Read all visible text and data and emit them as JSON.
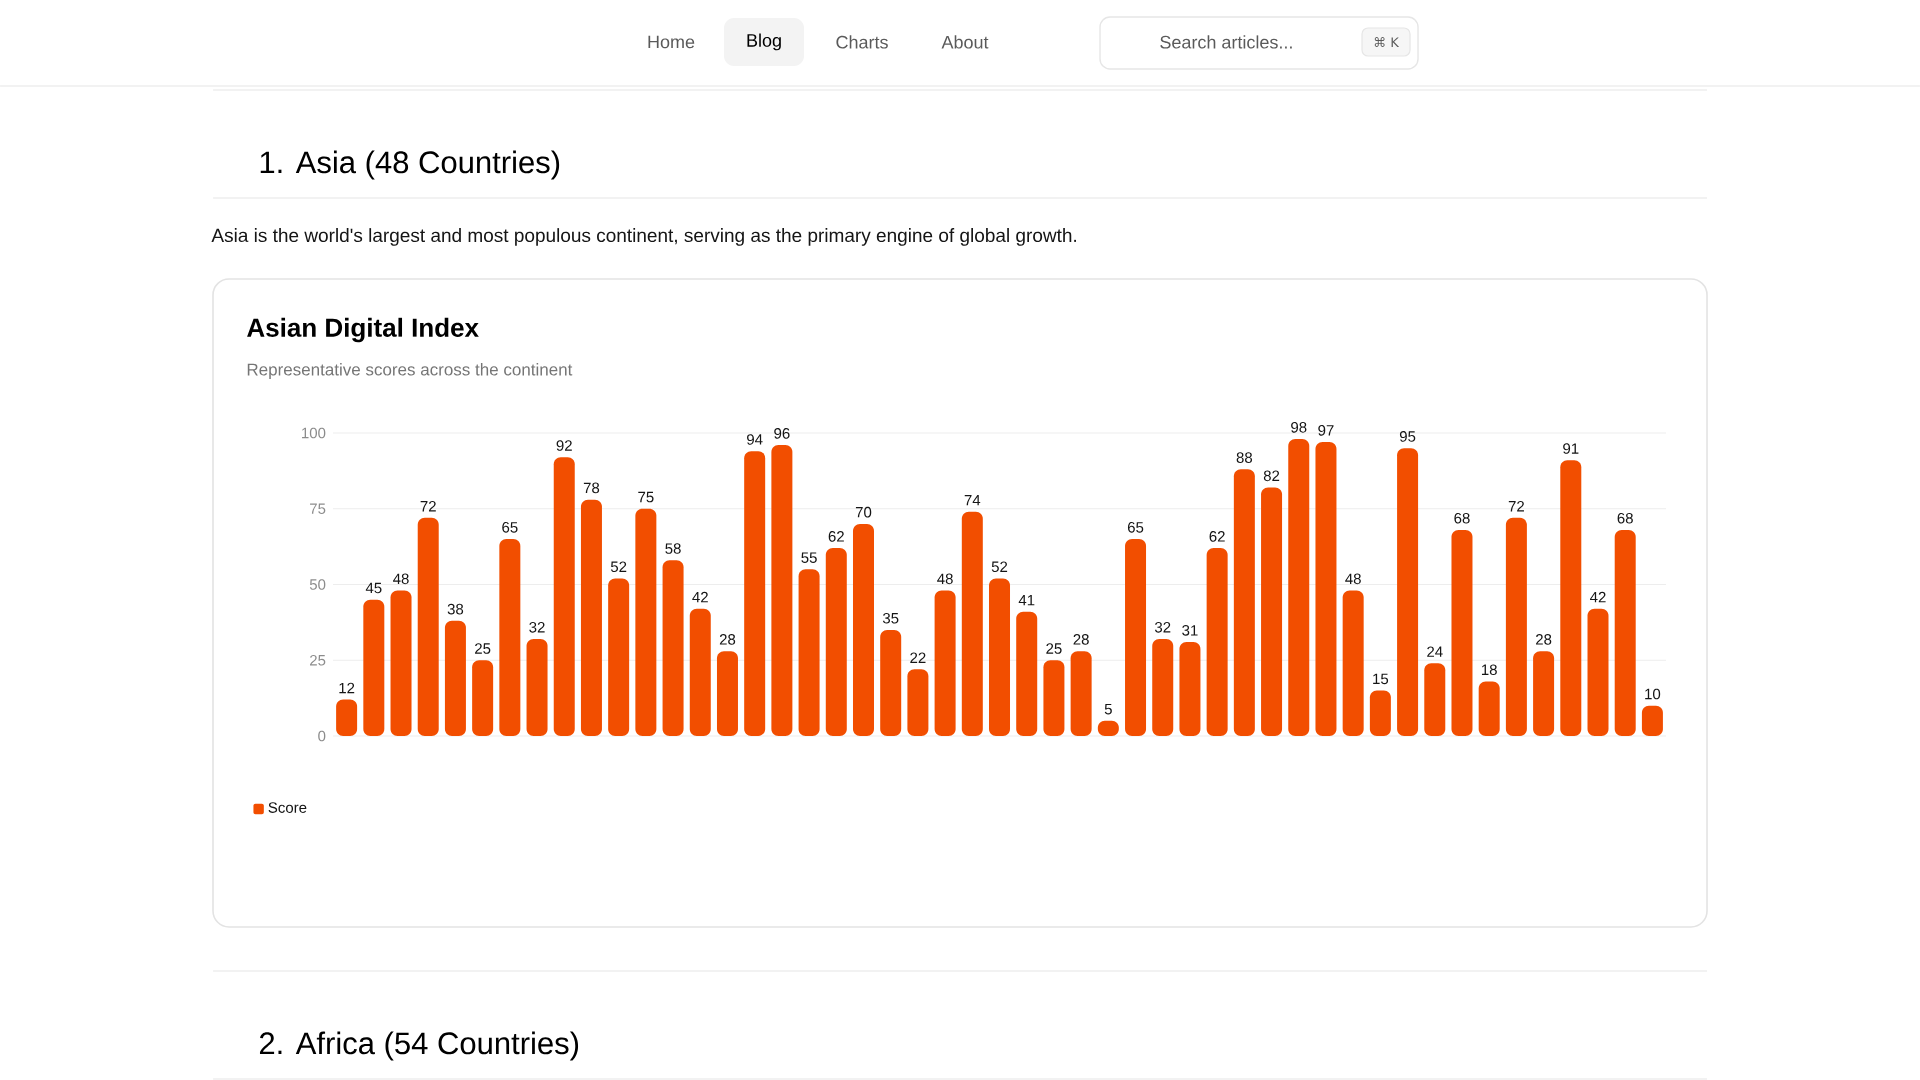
{
  "chart_data": {
    "type": "bar",
    "title": "Asian Digital Index",
    "subtitle": "Representative scores across the continent",
    "categories": [
      null,
      null,
      null,
      null,
      null,
      null,
      null,
      null,
      null,
      null,
      null,
      null,
      null,
      null,
      null,
      null,
      null,
      null,
      null,
      null,
      null,
      null,
      null,
      null,
      null,
      null,
      null,
      null,
      null,
      null,
      null,
      null,
      null,
      null,
      null,
      null,
      null,
      null,
      null,
      null,
      null,
      null,
      null,
      null,
      null,
      null,
      null,
      null,
      null
    ],
    "series": [
      {
        "name": "Score",
        "color": "#f24e00",
        "values": [
          12,
          45,
          48,
          72,
          38,
          25,
          65,
          32,
          92,
          78,
          52,
          75,
          58,
          42,
          28,
          94,
          96,
          55,
          62,
          70,
          35,
          22,
          48,
          74,
          52,
          41,
          25,
          28,
          5,
          65,
          32,
          31,
          62,
          88,
          82,
          98,
          97,
          48,
          15,
          95,
          24,
          68,
          18,
          72,
          28,
          91,
          42,
          68,
          10
        ]
      }
    ],
    "ylim": [
      0,
      100
    ],
    "yticks": [
      0,
      25,
      50,
      75,
      100
    ],
    "grid": "y",
    "legend": "bottom left",
    "data_labels": true,
    "annotations": [
      "Home",
      "Blog",
      "Charts",
      "About",
      "Search articles...",
      "⌘ K",
      "1. Asia (48 Countries)",
      "Asia is the world's largest and most populous continent, serving as the primary engine of global growth.",
      "2. Africa (54 Countries)"
    ]
  }
}
